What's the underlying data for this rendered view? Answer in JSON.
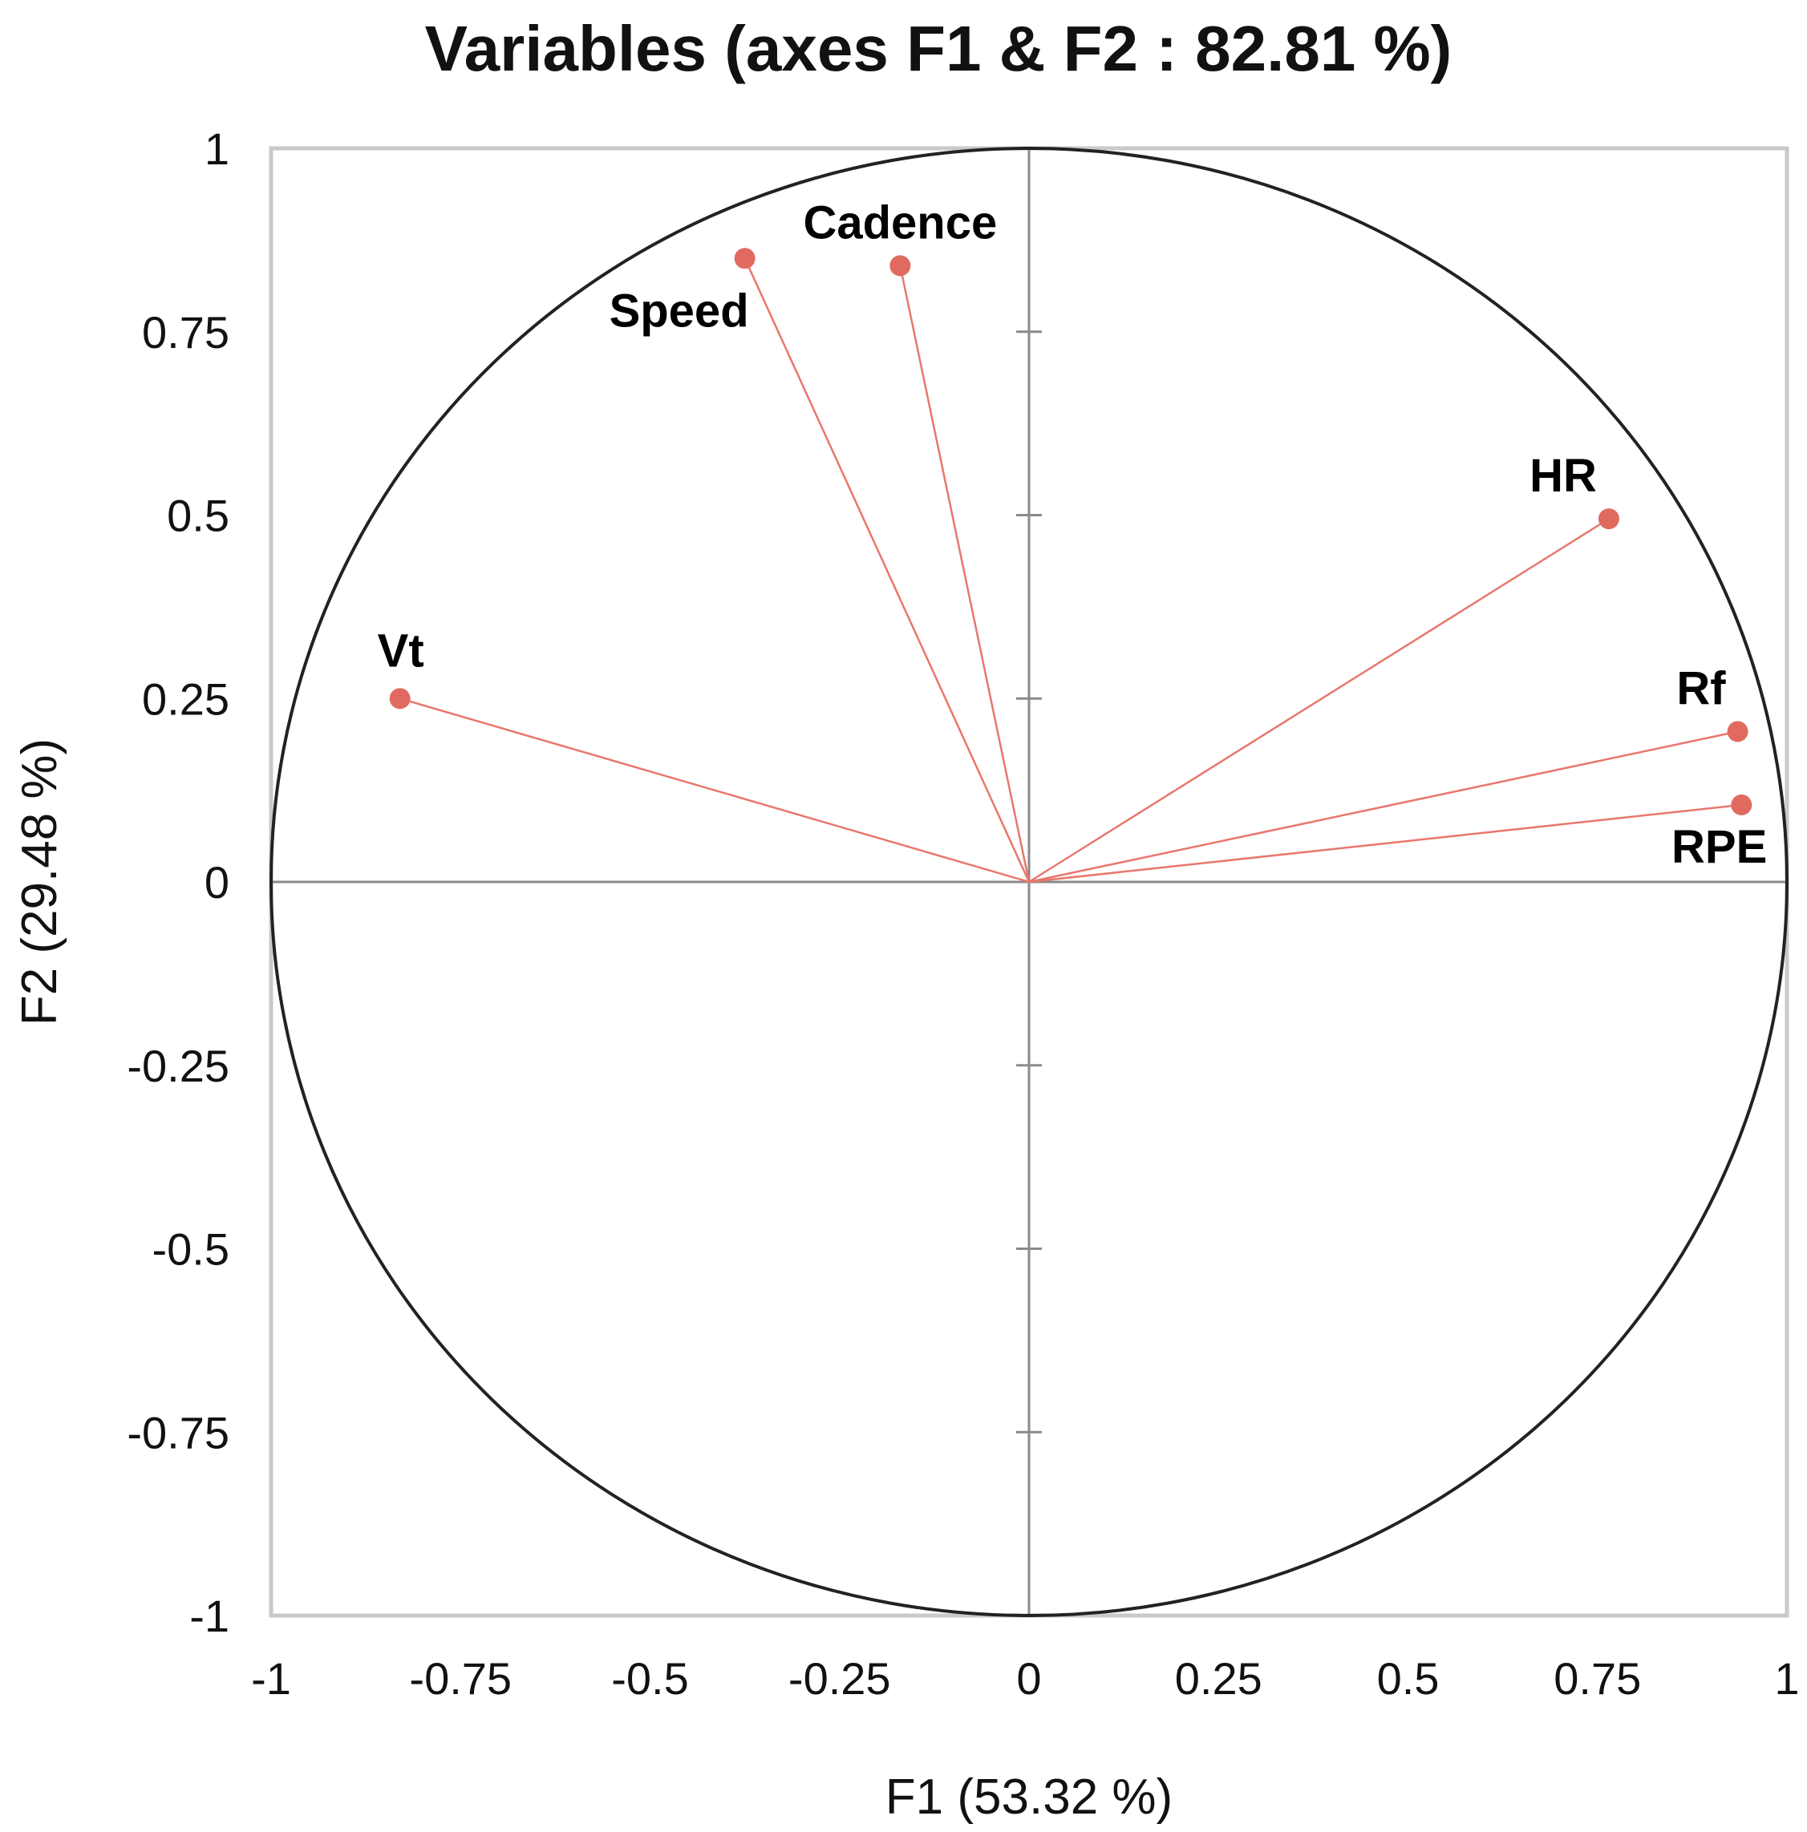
{
  "chart_data": {
    "type": "scatter",
    "subtype": "correlation-circle",
    "title": "Variables (axes F1 & F2 : 82.81 %)",
    "xlabel": "F1 (53.32 %)",
    "ylabel": "F2 (29.48 %)",
    "xlim": [
      -1,
      1
    ],
    "ylim": [
      -1,
      1
    ],
    "x_ticks": [
      -1,
      -0.75,
      -0.5,
      -0.25,
      0,
      0.25,
      0.5,
      0.75,
      1
    ],
    "x_tick_labels": [
      "-1",
      "-0.75",
      "-0.5",
      "-0.25",
      "0",
      "0.25",
      "0.5",
      "0.75",
      "1"
    ],
    "y_ticks": [
      1,
      0.75,
      0.5,
      0.25,
      0,
      -0.25,
      -0.5,
      -0.75,
      -1
    ],
    "y_tick_labels": [
      "1",
      "0.75",
      "0.5",
      "0.25",
      "0",
      "-0.25",
      "-0.5",
      "-0.75",
      "-1"
    ],
    "grid": false,
    "unit_circle": true,
    "vectors_from_origin": true,
    "point_color": "#e06a5f",
    "line_color": "#e8776d",
    "points": [
      {
        "label": "Cadence",
        "x": -0.17,
        "y": 0.84,
        "label_pos": "above"
      },
      {
        "label": "Speed",
        "x": -0.375,
        "y": 0.85,
        "label_pos": "below-left"
      },
      {
        "label": "HR",
        "x": 0.765,
        "y": 0.495,
        "label_pos": "above-left"
      },
      {
        "label": "Vt",
        "x": -0.83,
        "y": 0.25,
        "label_pos": "above-left"
      },
      {
        "label": "Rf",
        "x": 0.935,
        "y": 0.205,
        "label_pos": "above-left"
      },
      {
        "label": "RPE",
        "x": 0.94,
        "y": 0.105,
        "label_pos": "below-left"
      }
    ]
  }
}
